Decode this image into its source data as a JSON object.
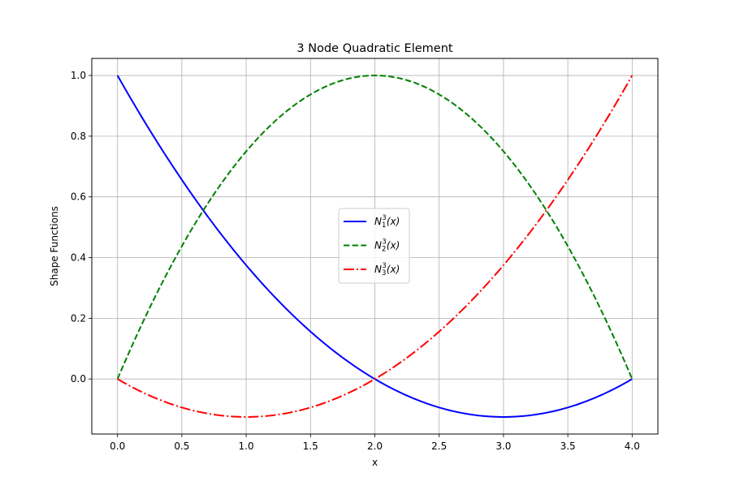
{
  "chart_data": {
    "type": "line",
    "title": "3 Node Quadratic Element",
    "xlabel": "x",
    "ylabel": "Shape Functions",
    "xlim": [
      -0.2,
      4.2
    ],
    "ylim": [
      -0.18125,
      1.05625
    ],
    "xticks": [
      0.0,
      0.5,
      1.0,
      1.5,
      2.0,
      2.5,
      3.0,
      3.5,
      4.0
    ],
    "xtick_labels": [
      "0.0",
      "0.5",
      "1.0",
      "1.5",
      "2.0",
      "2.5",
      "3.0",
      "3.5",
      "4.0"
    ],
    "yticks": [
      0.0,
      0.2,
      0.4,
      0.6,
      0.8,
      1.0
    ],
    "ytick_labels": [
      "0.0",
      "0.2",
      "0.4",
      "0.6",
      "0.8",
      "1.0"
    ],
    "grid": true,
    "legend_position": "center",
    "x": [
      0.0,
      0.25,
      0.5,
      0.75,
      1.0,
      1.25,
      1.5,
      1.75,
      2.0,
      2.25,
      2.5,
      2.75,
      3.0,
      3.25,
      3.5,
      3.75,
      4.0
    ],
    "series": [
      {
        "name": "N_1^3(x)",
        "legend_base": "N",
        "legend_sub": "1",
        "legend_sup": "3",
        "legend_arg": "(x)",
        "color": "#0000ff",
        "style": "solid",
        "values": [
          1.0,
          0.8203,
          0.6563,
          0.5078,
          0.375,
          0.2578,
          0.1563,
          0.0703,
          0.0,
          -0.0547,
          -0.0938,
          -0.1172,
          -0.125,
          -0.1172,
          -0.0938,
          -0.0547,
          0.0
        ]
      },
      {
        "name": "N_2^3(x)",
        "legend_base": "N",
        "legend_sub": "2",
        "legend_sup": "3",
        "legend_arg": "(x)",
        "color": "#008000",
        "style": "dashed",
        "values": [
          0.0,
          0.2344,
          0.4375,
          0.6094,
          0.75,
          0.8594,
          0.9375,
          0.9844,
          1.0,
          0.9844,
          0.9375,
          0.8594,
          0.75,
          0.6094,
          0.4375,
          0.2344,
          0.0
        ]
      },
      {
        "name": "N_3^3(x)",
        "legend_base": "N",
        "legend_sub": "3",
        "legend_sup": "3",
        "legend_arg": "(x)",
        "color": "#ff0000",
        "style": "dashdot",
        "values": [
          0.0,
          -0.0547,
          -0.0938,
          -0.1172,
          -0.125,
          -0.1172,
          -0.0938,
          -0.0547,
          0.0,
          0.0703,
          0.1563,
          0.2578,
          0.375,
          0.5078,
          0.6563,
          0.8203,
          1.0
        ]
      }
    ]
  }
}
